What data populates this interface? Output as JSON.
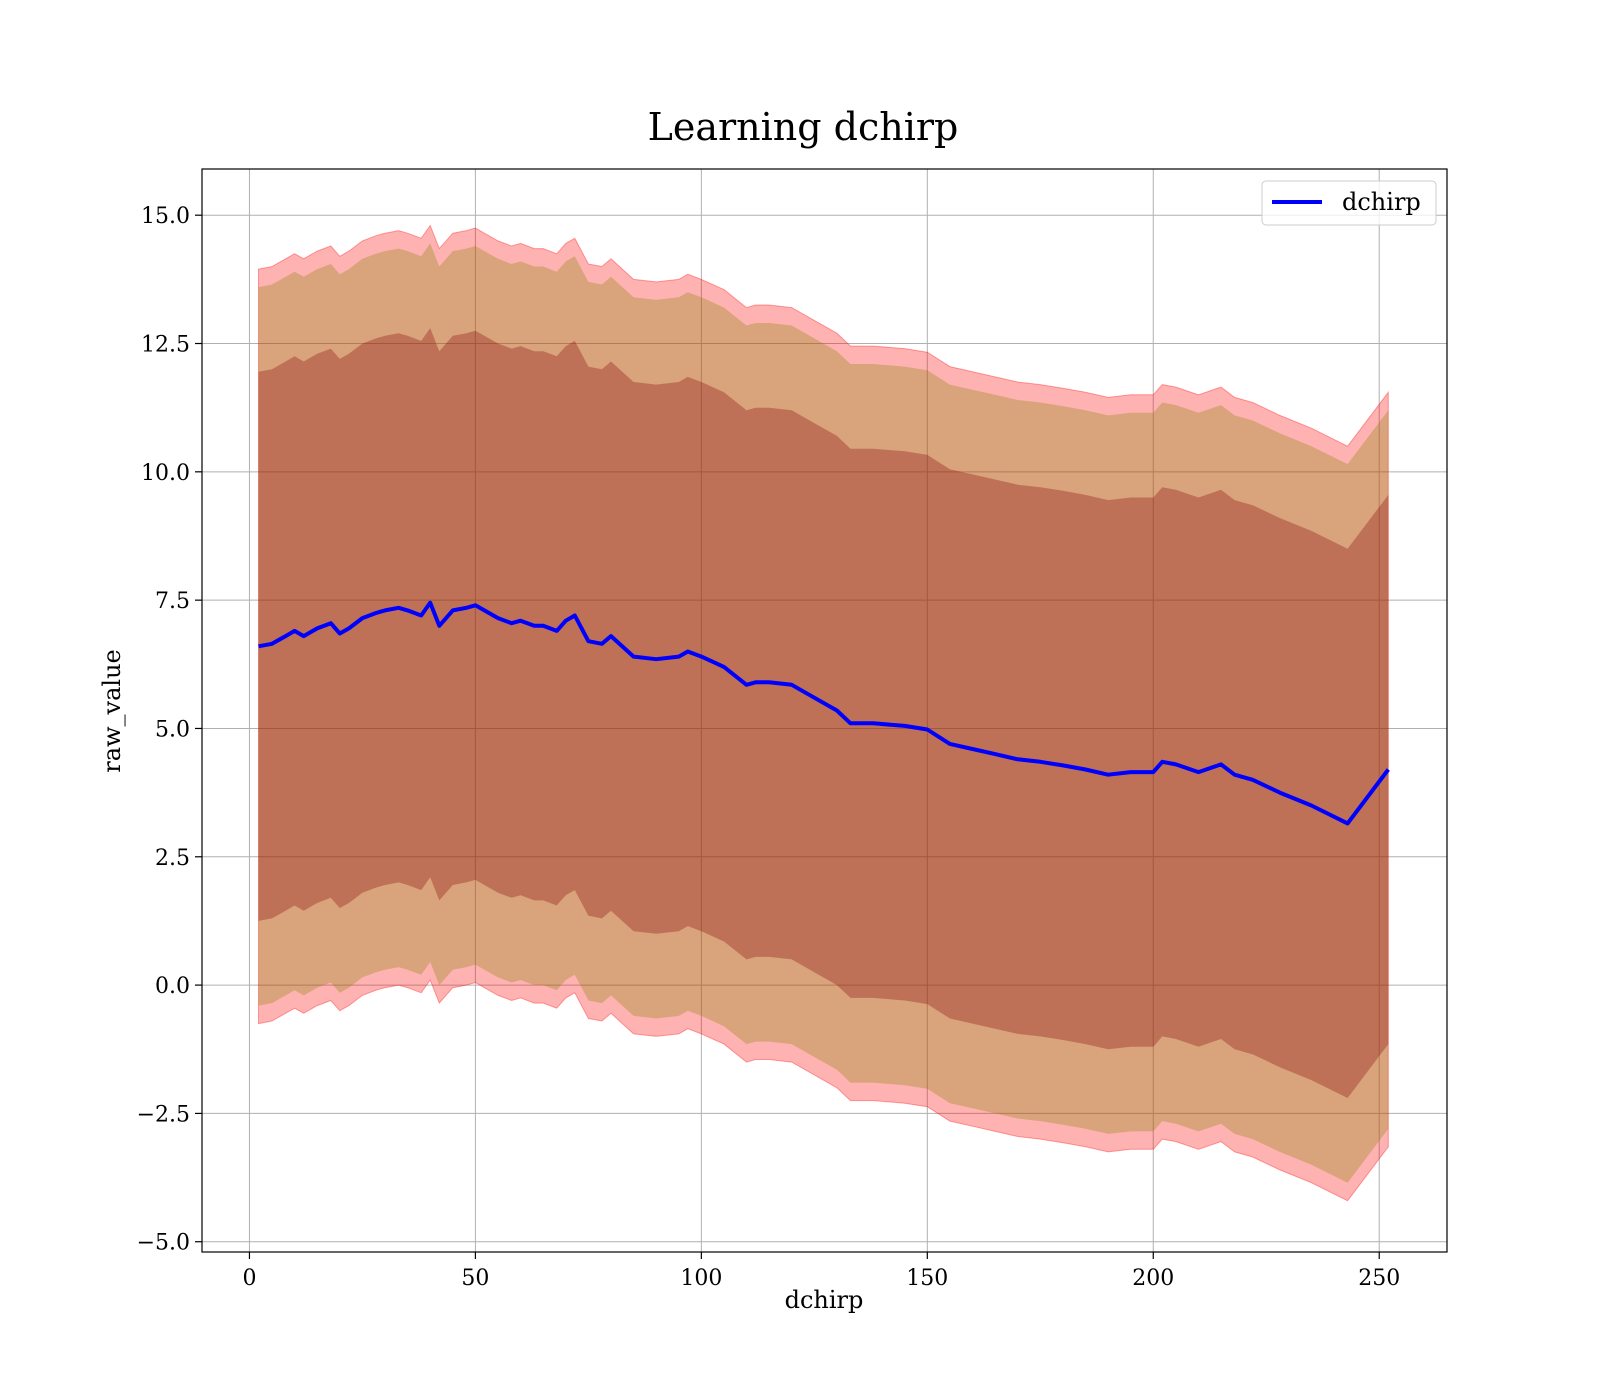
{
  "chart_data": {
    "type": "line",
    "title": "Learning dchirp",
    "xlabel": "dchirp",
    "ylabel": "raw_value",
    "xlim": [
      -10.5,
      265
    ],
    "ylim": [
      -5.2,
      15.9
    ],
    "xticks": [
      0,
      50,
      100,
      150,
      200,
      250
    ],
    "yticks": [
      -5.0,
      -2.5,
      0.0,
      2.5,
      5.0,
      7.5,
      10.0,
      12.5,
      15.0
    ],
    "xtick_labels": [
      "0",
      "50",
      "100",
      "150",
      "200",
      "250"
    ],
    "ytick_labels": [
      "−5.0",
      "−2.5",
      "0.0",
      "2.5",
      "5.0",
      "7.5",
      "10.0",
      "12.5",
      "15.0"
    ],
    "grid": true,
    "legend": {
      "position": "top-right",
      "entries": [
        "dchirp"
      ]
    },
    "colors": {
      "line": "#0000ff",
      "band": "#ff0000",
      "inner_band": "#800000",
      "grid": "#b0b0b0"
    },
    "series": [
      {
        "name": "dchirp",
        "x": [
          2,
          5,
          8,
          10,
          12,
          15,
          18,
          20,
          22,
          25,
          28,
          30,
          33,
          35,
          38,
          40,
          42,
          45,
          48,
          50,
          52,
          55,
          58,
          60,
          63,
          65,
          68,
          70,
          72,
          75,
          78,
          80,
          85,
          90,
          95,
          97,
          100,
          105,
          110,
          112,
          115,
          120,
          125,
          130,
          133,
          138,
          145,
          150,
          155,
          160,
          165,
          170,
          175,
          180,
          185,
          190,
          195,
          200,
          202,
          205,
          210,
          215,
          218,
          222,
          228,
          235,
          243,
          252
        ],
        "y": [
          6.6,
          6.65,
          6.8,
          6.9,
          6.8,
          6.95,
          7.05,
          6.85,
          6.95,
          7.15,
          7.25,
          7.3,
          7.35,
          7.3,
          7.2,
          7.45,
          7.0,
          7.3,
          7.35,
          7.4,
          7.3,
          7.15,
          7.05,
          7.1,
          7.0,
          7.0,
          6.9,
          7.1,
          7.2,
          6.7,
          6.65,
          6.8,
          6.4,
          6.35,
          6.4,
          6.5,
          6.4,
          6.2,
          5.85,
          5.9,
          5.9,
          5.85,
          5.6,
          5.35,
          5.1,
          5.1,
          5.05,
          4.98,
          4.7,
          4.6,
          4.5,
          4.4,
          4.35,
          4.28,
          4.2,
          4.1,
          4.15,
          4.15,
          4.35,
          4.3,
          4.15,
          4.3,
          4.1,
          4.0,
          3.75,
          3.5,
          3.15,
          4.2
        ],
        "band_outer_half_width": [
          7.35,
          7.35,
          7.35,
          7.35,
          7.35,
          7.35,
          7.35,
          7.35,
          7.35,
          7.35,
          7.35,
          7.35,
          7.35,
          7.35,
          7.35,
          7.35,
          7.35,
          7.35,
          7.35,
          7.35,
          7.35,
          7.35,
          7.35,
          7.35,
          7.35,
          7.35,
          7.35,
          7.35,
          7.35,
          7.35,
          7.35,
          7.35,
          7.35,
          7.35,
          7.35,
          7.35,
          7.35,
          7.35,
          7.35,
          7.35,
          7.35,
          7.35,
          7.35,
          7.35,
          7.35,
          7.35,
          7.35,
          7.35,
          7.35,
          7.35,
          7.35,
          7.35,
          7.35,
          7.35,
          7.35,
          7.35,
          7.35,
          7.35,
          7.35,
          7.35,
          7.35,
          7.35,
          7.35,
          7.35,
          7.35,
          7.35,
          7.35,
          7.35
        ],
        "band_middle_half_width": [
          7.0,
          7.0,
          7.0,
          7.0,
          7.0,
          7.0,
          7.0,
          7.0,
          7.0,
          7.0,
          7.0,
          7.0,
          7.0,
          7.0,
          7.0,
          7.0,
          7.0,
          7.0,
          7.0,
          7.0,
          7.0,
          7.0,
          7.0,
          7.0,
          7.0,
          7.0,
          7.0,
          7.0,
          7.0,
          7.0,
          7.0,
          7.0,
          7.0,
          7.0,
          7.0,
          7.0,
          7.0,
          7.0,
          7.0,
          7.0,
          7.0,
          7.0,
          7.0,
          7.0,
          7.0,
          7.0,
          7.0,
          7.0,
          7.0,
          7.0,
          7.0,
          7.0,
          7.0,
          7.0,
          7.0,
          7.0,
          7.0,
          7.0,
          7.0,
          7.0,
          7.0,
          7.0,
          7.0,
          7.0,
          7.0,
          7.0,
          7.0,
          7.0
        ],
        "band_inner_half_width": [
          5.35,
          5.35,
          5.35,
          5.35,
          5.35,
          5.35,
          5.35,
          5.35,
          5.35,
          5.35,
          5.35,
          5.35,
          5.35,
          5.35,
          5.35,
          5.35,
          5.35,
          5.35,
          5.35,
          5.35,
          5.35,
          5.35,
          5.35,
          5.35,
          5.35,
          5.35,
          5.35,
          5.35,
          5.35,
          5.35,
          5.35,
          5.35,
          5.35,
          5.35,
          5.35,
          5.35,
          5.35,
          5.35,
          5.35,
          5.35,
          5.35,
          5.35,
          5.35,
          5.35,
          5.35,
          5.35,
          5.35,
          5.35,
          5.35,
          5.35,
          5.35,
          5.35,
          5.35,
          5.35,
          5.35,
          5.35,
          5.35,
          5.35,
          5.35,
          5.35,
          5.35,
          5.35,
          5.35,
          5.35,
          5.35,
          5.35,
          5.35,
          5.35
        ]
      }
    ]
  }
}
